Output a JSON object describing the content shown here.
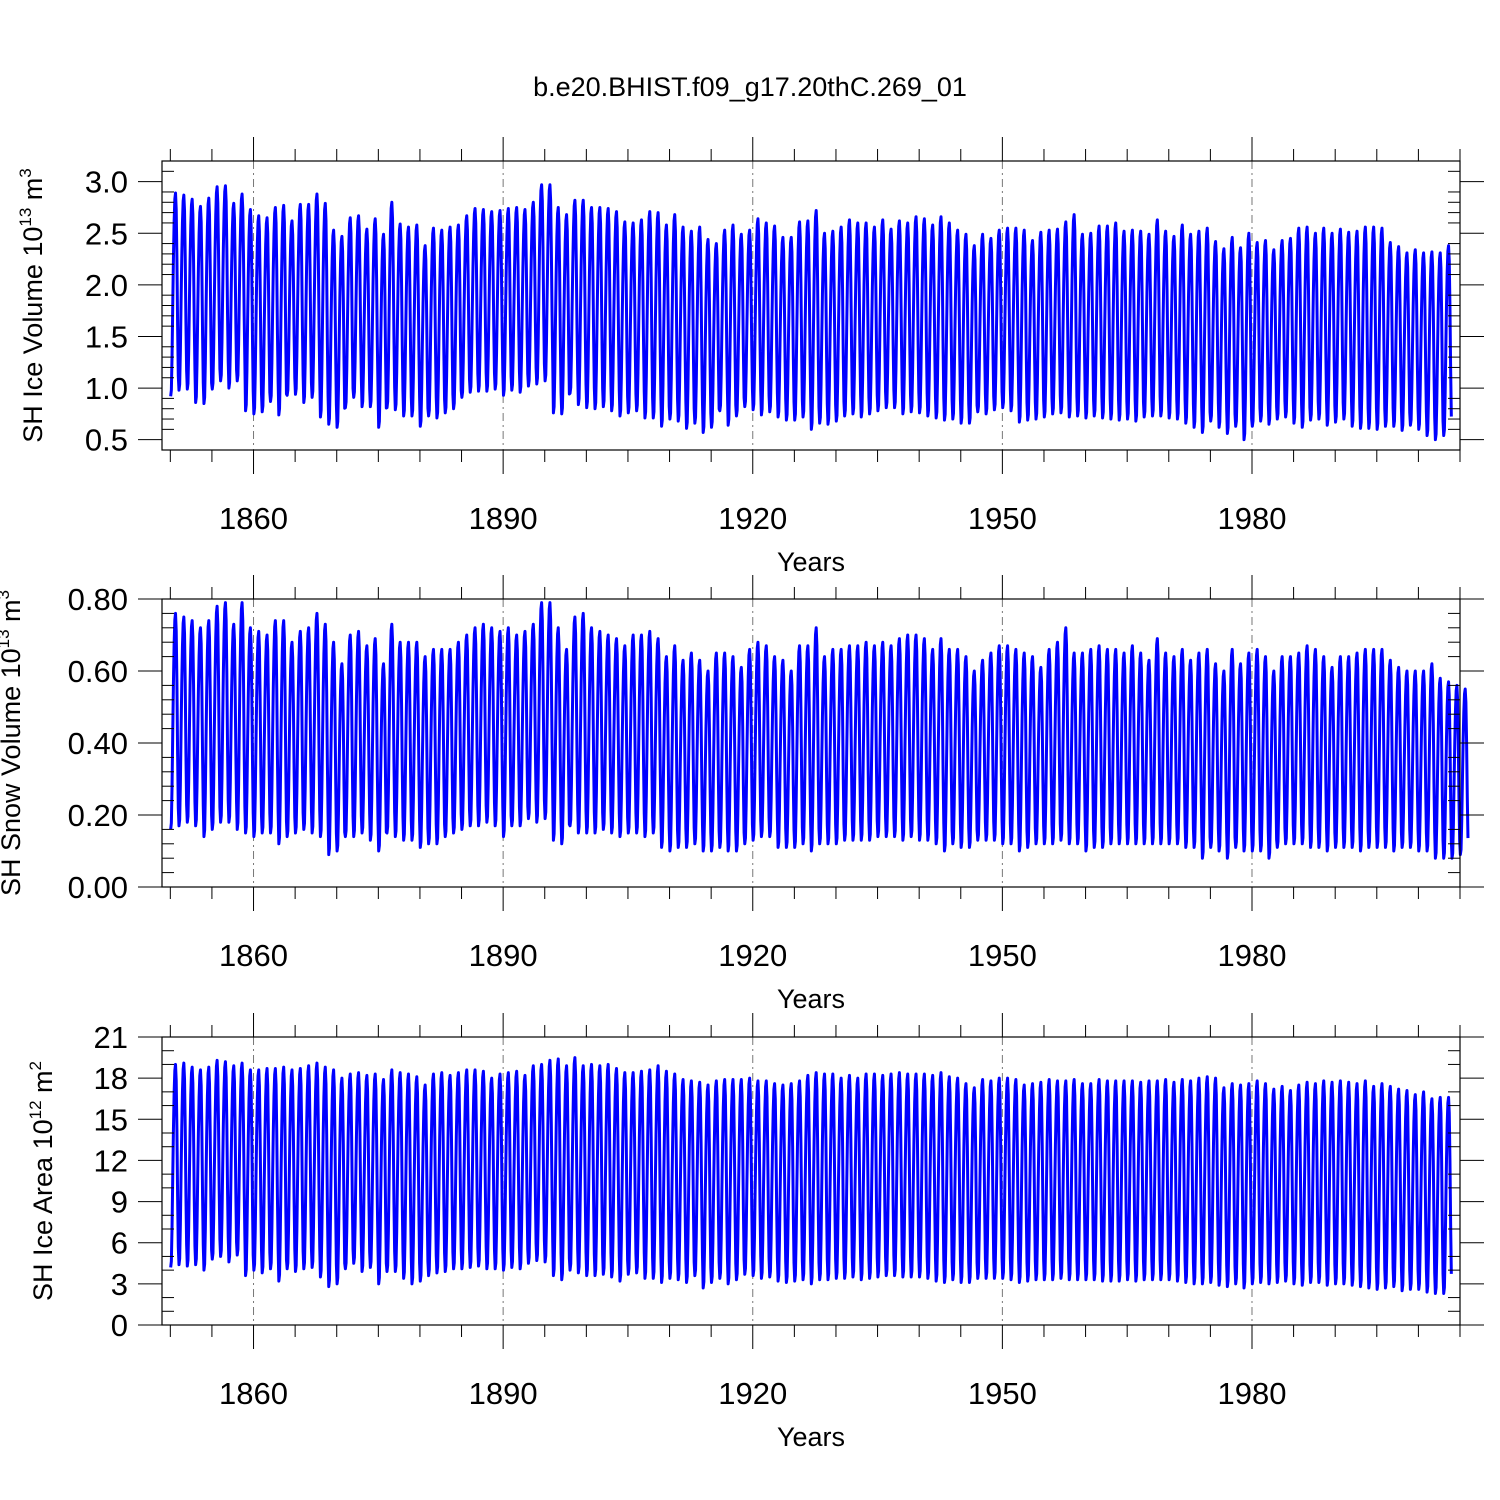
{
  "title": "b.e20.BHIST.f09_g17.20thC.269_01",
  "chart_data": [
    {
      "type": "line",
      "title": "b.e20.BHIST.f09_g17.20thC.269_01",
      "ylabel": {
        "text": "SH Ice Volume 10",
        "exp": "13",
        "unit": " m",
        "unit_exp": "3"
      },
      "xlabel": "Years",
      "xlim": [
        1849,
        2005
      ],
      "ylim": [
        0.4,
        3.2
      ],
      "xticks": [
        1860,
        1890,
        1920,
        1950,
        1980
      ],
      "yticks": [
        0.5,
        1.0,
        1.5,
        2.0,
        2.5,
        3.0
      ],
      "ytick_labels": [
        "0.5",
        "1.0",
        "1.5",
        "2.0",
        "2.5",
        "3.0"
      ],
      "y_minor_step": 0.1,
      "x_minor_step": 5,
      "grid": "x-major",
      "color": "#0000ff",
      "monthly": true,
      "start_year": 1850,
      "annual_max": [
        2.89,
        2.87,
        2.83,
        2.76,
        2.84,
        2.95,
        2.96,
        2.79,
        2.88,
        2.73,
        2.67,
        2.65,
        2.75,
        2.77,
        2.62,
        2.78,
        2.78,
        2.88,
        2.79,
        2.53,
        2.47,
        2.65,
        2.67,
        2.54,
        2.64,
        2.49,
        2.8,
        2.59,
        2.56,
        2.58,
        2.38,
        2.55,
        2.53,
        2.56,
        2.58,
        2.67,
        2.74,
        2.73,
        2.71,
        2.72,
        2.74,
        2.75,
        2.73,
        2.8,
        2.97,
        2.97,
        2.75,
        2.68,
        2.82,
        2.82,
        2.75,
        2.75,
        2.74,
        2.71,
        2.61,
        2.6,
        2.63,
        2.71,
        2.7,
        2.58,
        2.68,
        2.56,
        2.52,
        2.56,
        2.44,
        2.4,
        2.53,
        2.58,
        2.49,
        2.53,
        2.64,
        2.6,
        2.57,
        2.46,
        2.46,
        2.61,
        2.62,
        2.72,
        2.5,
        2.52,
        2.56,
        2.63,
        2.6,
        2.6,
        2.56,
        2.63,
        2.54,
        2.62,
        2.6,
        2.66,
        2.64,
        2.58,
        2.66,
        2.6,
        2.53,
        2.49,
        2.38,
        2.49,
        2.45,
        2.53,
        2.55,
        2.55,
        2.53,
        2.43,
        2.51,
        2.53,
        2.54,
        2.61,
        2.68,
        2.49,
        2.5,
        2.57,
        2.57,
        2.6,
        2.52,
        2.53,
        2.52,
        2.49,
        2.63,
        2.52,
        2.47,
        2.58,
        2.49,
        2.52,
        2.55,
        2.42,
        2.35,
        2.46,
        2.36,
        2.5,
        2.41,
        2.43,
        2.34,
        2.43,
        2.45,
        2.55,
        2.56,
        2.5,
        2.55,
        2.5,
        2.54,
        2.51,
        2.52,
        2.56,
        2.56,
        2.55,
        2.41,
        2.37,
        2.31,
        2.34,
        2.31,
        2.32,
        2.31,
        2.38,
        2.27,
        2.25,
        2.22,
        2.14
      ],
      "annual_min": [
        0.92,
        0.98,
        0.99,
        0.86,
        0.85,
        0.99,
        1.07,
        1.0,
        1.07,
        0.78,
        0.75,
        0.77,
        0.87,
        0.74,
        0.93,
        0.94,
        0.86,
        0.91,
        0.72,
        0.65,
        0.62,
        0.81,
        0.91,
        0.82,
        0.82,
        0.62,
        0.81,
        0.79,
        0.73,
        0.73,
        0.63,
        0.73,
        0.71,
        0.76,
        0.8,
        0.91,
        0.96,
        0.97,
        0.97,
        0.99,
        0.93,
        0.98,
        0.96,
        1.02,
        1.04,
        1.07,
        0.76,
        0.75,
        0.95,
        0.84,
        0.81,
        0.8,
        0.82,
        0.78,
        0.73,
        0.76,
        0.78,
        0.71,
        0.71,
        0.63,
        0.7,
        0.68,
        0.61,
        0.66,
        0.57,
        0.62,
        0.78,
        0.64,
        0.73,
        0.82,
        0.79,
        0.74,
        0.77,
        0.72,
        0.69,
        0.69,
        0.72,
        0.6,
        0.66,
        0.65,
        0.68,
        0.73,
        0.75,
        0.72,
        0.75,
        0.78,
        0.81,
        0.81,
        0.75,
        0.77,
        0.76,
        0.73,
        0.71,
        0.69,
        0.7,
        0.66,
        0.66,
        0.77,
        0.75,
        0.79,
        0.81,
        0.78,
        0.67,
        0.69,
        0.7,
        0.72,
        0.75,
        0.76,
        0.72,
        0.73,
        0.71,
        0.73,
        0.71,
        0.7,
        0.69,
        0.7,
        0.68,
        0.72,
        0.73,
        0.73,
        0.71,
        0.7,
        0.66,
        0.62,
        0.57,
        0.68,
        0.62,
        0.56,
        0.63,
        0.5,
        0.63,
        0.68,
        0.65,
        0.7,
        0.72,
        0.66,
        0.62,
        0.69,
        0.7,
        0.64,
        0.67,
        0.7,
        0.63,
        0.61,
        0.61,
        0.6,
        0.63,
        0.63,
        0.59,
        0.64,
        0.6,
        0.54,
        0.5,
        0.54
      ]
    },
    {
      "type": "line",
      "ylabel": {
        "text": "SH Snow Volume 10",
        "exp": "13",
        "unit": " m",
        "unit_exp": "3"
      },
      "xlabel": "Years",
      "xlim": [
        1849,
        2005
      ],
      "ylim": [
        0.0,
        0.8
      ],
      "xticks": [
        1860,
        1890,
        1920,
        1950,
        1980
      ],
      "yticks": [
        0.0,
        0.2,
        0.4,
        0.6,
        0.8
      ],
      "ytick_labels": [
        "0.00",
        "0.20",
        "0.40",
        "0.60",
        "0.80"
      ],
      "y_minor_step": 0.04,
      "x_minor_step": 5,
      "grid": "x-major",
      "color": "#0000ff",
      "monthly": true,
      "start_year": 1850,
      "annual_max": [
        0.76,
        0.75,
        0.74,
        0.72,
        0.74,
        0.78,
        0.79,
        0.73,
        0.79,
        0.72,
        0.71,
        0.7,
        0.74,
        0.74,
        0.68,
        0.71,
        0.72,
        0.76,
        0.73,
        0.68,
        0.62,
        0.7,
        0.71,
        0.67,
        0.69,
        0.62,
        0.73,
        0.68,
        0.68,
        0.68,
        0.64,
        0.66,
        0.66,
        0.66,
        0.68,
        0.7,
        0.72,
        0.73,
        0.72,
        0.71,
        0.72,
        0.7,
        0.71,
        0.73,
        0.79,
        0.79,
        0.72,
        0.66,
        0.75,
        0.76,
        0.72,
        0.71,
        0.7,
        0.69,
        0.67,
        0.7,
        0.7,
        0.71,
        0.69,
        0.64,
        0.67,
        0.63,
        0.65,
        0.63,
        0.6,
        0.65,
        0.65,
        0.64,
        0.61,
        0.66,
        0.68,
        0.67,
        0.64,
        0.63,
        0.6,
        0.67,
        0.67,
        0.72,
        0.64,
        0.66,
        0.66,
        0.67,
        0.67,
        0.68,
        0.67,
        0.68,
        0.67,
        0.69,
        0.7,
        0.7,
        0.69,
        0.66,
        0.69,
        0.66,
        0.66,
        0.64,
        0.6,
        0.63,
        0.65,
        0.67,
        0.67,
        0.66,
        0.65,
        0.64,
        0.61,
        0.66,
        0.68,
        0.72,
        0.65,
        0.65,
        0.66,
        0.67,
        0.66,
        0.66,
        0.65,
        0.67,
        0.65,
        0.63,
        0.69,
        0.65,
        0.64,
        0.66,
        0.63,
        0.65,
        0.66,
        0.62,
        0.6,
        0.66,
        0.62,
        0.65,
        0.66,
        0.64,
        0.6,
        0.64,
        0.64,
        0.65,
        0.67,
        0.66,
        0.64,
        0.61,
        0.64,
        0.64,
        0.65,
        0.66,
        0.66,
        0.66,
        0.63,
        0.61,
        0.6,
        0.6,
        0.6,
        0.62,
        0.58,
        0.57,
        0.56,
        0.55
      ],
      "annual_min": [
        0.16,
        0.17,
        0.18,
        0.17,
        0.14,
        0.16,
        0.18,
        0.18,
        0.16,
        0.15,
        0.14,
        0.15,
        0.15,
        0.12,
        0.14,
        0.15,
        0.16,
        0.15,
        0.14,
        0.09,
        0.1,
        0.14,
        0.14,
        0.15,
        0.13,
        0.1,
        0.15,
        0.14,
        0.13,
        0.13,
        0.11,
        0.12,
        0.12,
        0.14,
        0.15,
        0.16,
        0.17,
        0.17,
        0.18,
        0.17,
        0.14,
        0.17,
        0.17,
        0.19,
        0.18,
        0.19,
        0.13,
        0.12,
        0.17,
        0.15,
        0.15,
        0.15,
        0.16,
        0.15,
        0.14,
        0.15,
        0.15,
        0.14,
        0.15,
        0.11,
        0.1,
        0.11,
        0.11,
        0.12,
        0.1,
        0.1,
        0.11,
        0.1,
        0.1,
        0.12,
        0.13,
        0.14,
        0.14,
        0.11,
        0.11,
        0.11,
        0.12,
        0.1,
        0.12,
        0.12,
        0.12,
        0.13,
        0.13,
        0.13,
        0.13,
        0.14,
        0.14,
        0.14,
        0.13,
        0.14,
        0.13,
        0.13,
        0.12,
        0.1,
        0.12,
        0.11,
        0.11,
        0.13,
        0.13,
        0.13,
        0.12,
        0.12,
        0.1,
        0.11,
        0.12,
        0.12,
        0.12,
        0.13,
        0.12,
        0.12,
        0.1,
        0.11,
        0.11,
        0.12,
        0.12,
        0.12,
        0.12,
        0.12,
        0.12,
        0.12,
        0.12,
        0.12,
        0.11,
        0.11,
        0.08,
        0.11,
        0.1,
        0.08,
        0.11,
        0.1,
        0.1,
        0.1,
        0.08,
        0.11,
        0.12,
        0.12,
        0.12,
        0.11,
        0.11,
        0.1,
        0.11,
        0.11,
        0.11,
        0.1,
        0.11,
        0.11,
        0.11,
        0.1,
        0.11,
        0.11,
        0.1,
        0.1,
        0.08,
        0.08,
        0.08,
        0.09
      ]
    },
    {
      "type": "line",
      "ylabel": {
        "text": "SH Ice Area 10",
        "exp": "12",
        "unit": " m",
        "unit_exp": "2"
      },
      "xlabel": "Years",
      "xlim": [
        1849,
        2005
      ],
      "ylim": [
        0,
        21
      ],
      "xticks": [
        1860,
        1890,
        1920,
        1950,
        1980
      ],
      "yticks": [
        0,
        3,
        6,
        9,
        12,
        15,
        18,
        21
      ],
      "ytick_labels": [
        "0",
        "3",
        "6",
        "9",
        "12",
        "15",
        "18",
        "21"
      ],
      "y_minor_step": 1,
      "x_minor_step": 5,
      "grid": "x-major",
      "color": "#0000ff",
      "monthly": true,
      "start_year": 1850,
      "annual_max": [
        19.0,
        19.1,
        18.8,
        18.6,
        18.8,
        19.3,
        19.2,
        18.9,
        19.1,
        18.6,
        18.6,
        18.7,
        18.7,
        18.8,
        18.6,
        18.7,
        18.9,
        19.1,
        18.8,
        18.6,
        18.0,
        18.3,
        18.4,
        18.2,
        18.3,
        17.9,
        18.6,
        18.4,
        18.3,
        18.1,
        17.5,
        18.3,
        18.4,
        18.2,
        18.4,
        18.6,
        18.6,
        18.5,
        18.0,
        18.3,
        18.4,
        18.5,
        18.2,
        18.9,
        19.0,
        19.3,
        19.4,
        18.9,
        19.5,
        18.9,
        19.0,
        18.9,
        19.0,
        18.7,
        18.4,
        18.4,
        18.5,
        18.6,
        18.9,
        18.5,
        18.3,
        17.9,
        17.8,
        17.7,
        17.5,
        17.8,
        17.9,
        17.9,
        17.9,
        18.0,
        17.8,
        17.8,
        17.6,
        17.5,
        17.6,
        17.8,
        18.2,
        18.4,
        18.3,
        18.3,
        18.0,
        18.2,
        18.0,
        18.3,
        18.3,
        18.2,
        18.3,
        18.4,
        18.3,
        18.3,
        18.3,
        18.2,
        18.4,
        18.1,
        18.0,
        17.6,
        17.3,
        17.9,
        17.8,
        18.0,
        18.0,
        17.9,
        17.5,
        17.6,
        17.7,
        17.9,
        17.8,
        17.8,
        17.9,
        17.6,
        17.6,
        17.9,
        17.8,
        17.8,
        17.8,
        17.8,
        17.7,
        17.8,
        17.8,
        17.9,
        17.7,
        17.9,
        17.8,
        18.0,
        18.1,
        18.0,
        17.3,
        17.6,
        17.5,
        17.6,
        17.8,
        17.6,
        17.2,
        17.4,
        17.1,
        17.5,
        17.7,
        17.6,
        17.8,
        17.7,
        17.8,
        17.7,
        17.6,
        17.8,
        17.4,
        17.6,
        17.4,
        17.2,
        17.1,
        16.8,
        17.0,
        16.5,
        16.6,
        16.6,
        16.4,
        16.3
      ],
      "annual_min": [
        4.2,
        4.4,
        4.3,
        4.4,
        4.0,
        4.8,
        5.0,
        4.6,
        5.1,
        3.6,
        4.0,
        3.8,
        4.1,
        3.2,
        4.1,
        3.9,
        4.1,
        4.2,
        3.5,
        2.8,
        3.0,
        4.1,
        4.5,
        3.9,
        4.2,
        3.0,
        3.9,
        3.9,
        3.4,
        3.0,
        3.2,
        3.6,
        3.8,
        3.9,
        4.1,
        4.1,
        4.2,
        4.3,
        4.1,
        4.1,
        4.0,
        4.2,
        4.1,
        4.5,
        4.7,
        4.6,
        3.6,
        3.3,
        4.0,
        3.8,
        3.6,
        3.6,
        3.7,
        3.5,
        3.2,
        3.7,
        3.8,
        3.4,
        3.4,
        3.1,
        3.4,
        3.3,
        3.1,
        3.6,
        2.7,
        3.1,
        3.4,
        3.0,
        3.3,
        3.7,
        3.6,
        3.4,
        3.5,
        3.2,
        3.1,
        3.2,
        3.3,
        3.0,
        3.3,
        3.3,
        3.4,
        3.4,
        3.5,
        3.3,
        3.4,
        3.5,
        3.6,
        3.6,
        3.5,
        3.5,
        3.5,
        3.4,
        3.2,
        3.1,
        3.3,
        3.1,
        3.1,
        3.4,
        3.4,
        3.4,
        3.4,
        3.3,
        3.1,
        3.2,
        3.3,
        3.3,
        3.3,
        3.4,
        3.3,
        3.3,
        3.3,
        3.3,
        3.2,
        3.2,
        3.2,
        3.3,
        3.2,
        3.3,
        3.3,
        3.3,
        3.3,
        3.2,
        3.1,
        3.0,
        3.0,
        3.1,
        2.9,
        2.8,
        3.0,
        2.7,
        3.0,
        3.1,
        3.0,
        3.1,
        3.2,
        3.0,
        2.9,
        3.1,
        3.1,
        2.9,
        3.0,
        3.0,
        2.9,
        2.8,
        2.7,
        2.6,
        2.7,
        2.8,
        2.5,
        2.6,
        2.6,
        2.4,
        2.3,
        2.3
      ]
    }
  ]
}
